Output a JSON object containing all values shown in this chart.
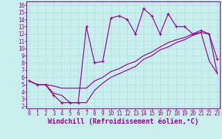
{
  "background_color": "#c8eeee",
  "line_color": "#990099",
  "grid_color": "#aadddd",
  "xlabel": "Windchill (Refroidissement éolien,°C)",
  "ylabel_ticks": [
    2,
    3,
    4,
    5,
    6,
    7,
    8,
    9,
    10,
    11,
    12,
    13,
    14,
    15,
    16
  ],
  "xticks": [
    0,
    1,
    2,
    3,
    4,
    5,
    6,
    7,
    8,
    9,
    10,
    11,
    12,
    13,
    14,
    15,
    16,
    17,
    18,
    19,
    20,
    21,
    22,
    23
  ],
  "xlim": [
    -0.3,
    23.3
  ],
  "ylim": [
    1.7,
    16.5
  ],
  "curve1_x": [
    0,
    1,
    2,
    3,
    4,
    5,
    6,
    7,
    8,
    9,
    10,
    11,
    12,
    13,
    14,
    15,
    16,
    17,
    18,
    19,
    20,
    21,
    22,
    23
  ],
  "curve1_y": [
    5.5,
    5.0,
    5.0,
    3.8,
    3.5,
    2.5,
    2.5,
    2.5,
    4.2,
    5.2,
    6.0,
    6.5,
    7.0,
    7.5,
    8.5,
    9.0,
    9.8,
    10.2,
    10.8,
    11.2,
    11.8,
    12.2,
    8.3,
    6.5
  ],
  "curve2_x": [
    0,
    1,
    2,
    3,
    4,
    5,
    6,
    7,
    8,
    9,
    10,
    11,
    12,
    13,
    14,
    15,
    16,
    17,
    18,
    19,
    20,
    21,
    22,
    23
  ],
  "curve2_y": [
    5.5,
    5.0,
    5.0,
    4.8,
    4.5,
    4.5,
    4.5,
    4.5,
    5.5,
    6.0,
    6.8,
    7.2,
    7.8,
    8.2,
    9.0,
    9.5,
    10.2,
    10.8,
    11.2,
    11.5,
    12.0,
    12.2,
    12.0,
    6.5
  ],
  "curve3_x": [
    0,
    1,
    2,
    3,
    4,
    5,
    6,
    7,
    8,
    9,
    10,
    11,
    12,
    13,
    14,
    15,
    16,
    17,
    18,
    19,
    20,
    21,
    22,
    23
  ],
  "curve3_y": [
    5.5,
    5.0,
    5.0,
    3.5,
    2.5,
    2.5,
    2.5,
    13.0,
    8.0,
    8.2,
    14.2,
    14.5,
    14.0,
    12.0,
    15.5,
    14.5,
    12.0,
    14.8,
    13.0,
    13.0,
    12.0,
    12.5,
    12.0,
    8.5
  ],
  "tick_fontsize": 5.5,
  "label_fontsize": 7.0
}
